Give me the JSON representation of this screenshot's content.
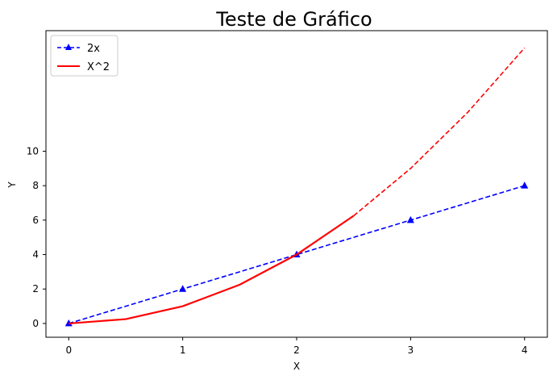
{
  "chart_data": {
    "type": "line",
    "title": "Teste de Gráfico",
    "xlabel": "X",
    "ylabel": "Y",
    "xlim": [
      -0.2,
      4.2
    ],
    "ylim": [
      -0.8,
      17
    ],
    "xticks": [
      0,
      1,
      2,
      3,
      4
    ],
    "yticks": [
      0,
      2,
      4,
      6,
      8,
      10
    ],
    "grid": false,
    "legend_position": "top-left",
    "series": [
      {
        "name": "2x",
        "color": "#0000ff",
        "linestyle": "dashed",
        "marker": "triangle",
        "x": [
          0,
          1,
          2,
          3,
          4
        ],
        "y": [
          0,
          2,
          4,
          6,
          8
        ]
      },
      {
        "name": "X^2",
        "color": "#ff0000",
        "linestyle": "solid",
        "x": [
          0,
          0.5,
          1,
          1.5,
          2,
          2.5
        ],
        "y": [
          0,
          0.25,
          1,
          2.25,
          4,
          6.25
        ]
      },
      {
        "color": "#ff0000",
        "linestyle": "dashed",
        "x": [
          2.5,
          3,
          3.5,
          4
        ],
        "y": [
          6.25,
          9,
          12.25,
          16
        ]
      }
    ]
  }
}
